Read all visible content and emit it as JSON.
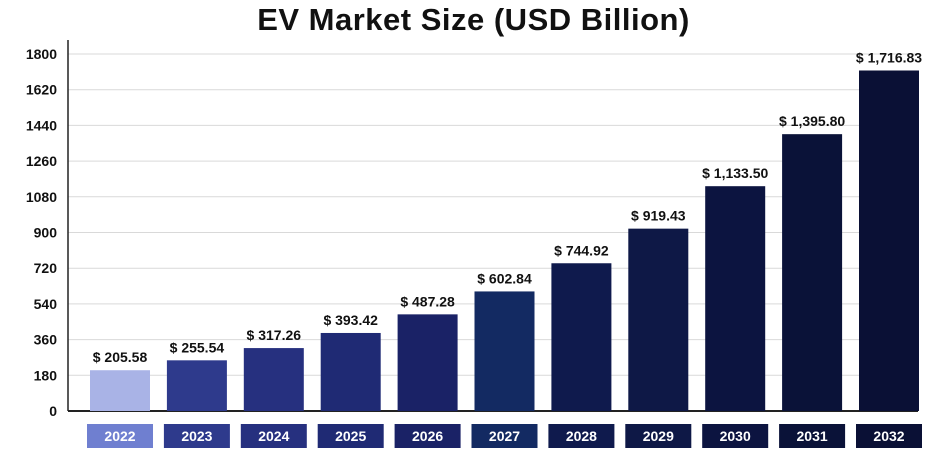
{
  "chart_data": {
    "type": "bar",
    "title": "EV Market Size (USD Billion)",
    "categories": [
      "2022",
      "2023",
      "2024",
      "2025",
      "2026",
      "2027",
      "2028",
      "2029",
      "2030",
      "2031",
      "2032"
    ],
    "values": [
      205.58,
      255.54,
      317.26,
      393.42,
      487.28,
      602.84,
      744.92,
      919.43,
      1133.5,
      1395.8,
      1716.83
    ],
    "data_labels": [
      "$ 205.58",
      "$ 255.54",
      "$ 317.26",
      "$ 393.42",
      "$ 487.28",
      "$ 602.84",
      "$ 744.92",
      "$ 919.43",
      "$ 1,133.50",
      "$ 1,395.80",
      "$ 1,716.83"
    ],
    "yticks": [
      0,
      180,
      360,
      540,
      720,
      900,
      1080,
      1260,
      1440,
      1620,
      1800
    ],
    "ylim": [
      0,
      1800
    ],
    "grid": true,
    "bar_colors": [
      "#a9b3e6",
      "#2e3a8c",
      "#26307f",
      "#1f2a74",
      "#1a2266",
      "#132a62",
      "#0f1a4d",
      "#0e1846",
      "#0c1440",
      "#0a1238",
      "#0a1035"
    ],
    "label_box_colors": [
      "#6f7fd0",
      "#2e3a8c",
      "#26307f",
      "#1f2a74",
      "#1a2266",
      "#132a62",
      "#0f1a4d",
      "#0e1846",
      "#0c1440",
      "#0a1238",
      "#0a1035"
    ]
  }
}
